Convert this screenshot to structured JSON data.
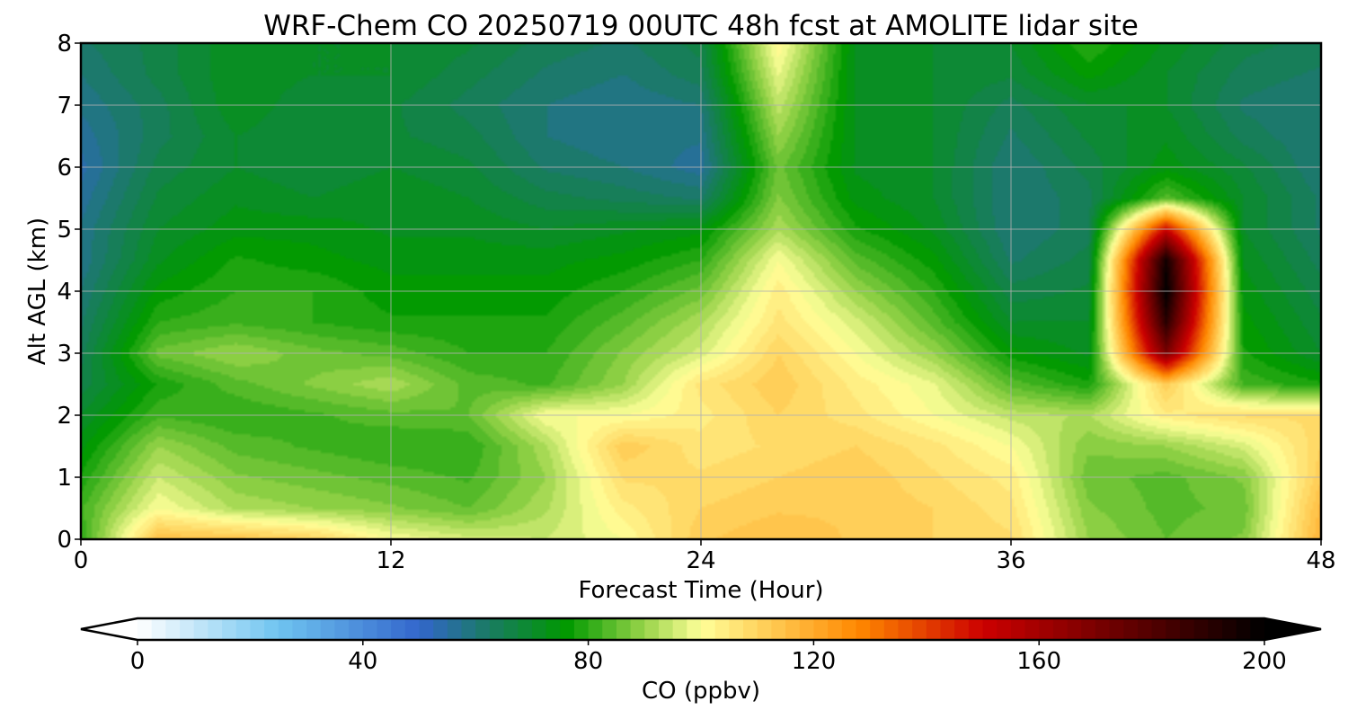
{
  "chart_data": {
    "type": "heatmap",
    "plot_kind": "filled contour (time-height cross section)",
    "title": "WRF-Chem CO  20250719 00UTC 48h fcst at AMOLITE lidar site",
    "xlabel": "Forecast Time (Hour)",
    "ylabel": "Alt AGL (km)",
    "xlim": [
      0,
      48
    ],
    "ylim": [
      0,
      8
    ],
    "x_ticks": [
      0,
      12,
      24,
      36,
      48
    ],
    "y_ticks": [
      0,
      1,
      2,
      3,
      4,
      5,
      6,
      7,
      8
    ],
    "grid": true,
    "x_hours": [
      0,
      3,
      6,
      9,
      12,
      15,
      18,
      21,
      24,
      27,
      30,
      33,
      36,
      39,
      42,
      45,
      48
    ],
    "y_km": [
      0,
      0.5,
      1,
      1.5,
      2,
      2.5,
      3,
      3.5,
      4,
      4.5,
      5,
      5.5,
      6,
      6.5,
      7,
      7.5,
      8
    ],
    "z_ppbv": [
      [
        80,
        115,
        114,
        110,
        100,
        96,
        95,
        100,
        112,
        115,
        112,
        110,
        108,
        90,
        85,
        88,
        118
      ],
      [
        82,
        100,
        92,
        90,
        88,
        85,
        92,
        104,
        110,
        112,
        112,
        110,
        106,
        88,
        84,
        86,
        116
      ],
      [
        78,
        95,
        88,
        86,
        84,
        82,
        90,
        108,
        108,
        110,
        112,
        108,
        104,
        86,
        84,
        88,
        112
      ],
      [
        74,
        90,
        84,
        82,
        80,
        80,
        92,
        112,
        106,
        108,
        110,
        106,
        100,
        88,
        90,
        96,
        110
      ],
      [
        70,
        82,
        80,
        82,
        84,
        85,
        100,
        100,
        104,
        110,
        106,
        100,
        94,
        92,
        104,
        108,
        108
      ],
      [
        66,
        78,
        84,
        88,
        92,
        84,
        82,
        90,
        106,
        112,
        104,
        98,
        84,
        78,
        112,
        82,
        78
      ],
      [
        64,
        86,
        90,
        86,
        84,
        80,
        80,
        88,
        96,
        110,
        100,
        90,
        76,
        72,
        170,
        78,
        70
      ],
      [
        62,
        80,
        82,
        80,
        78,
        78,
        78,
        84,
        92,
        106,
        96,
        84,
        70,
        70,
        190,
        76,
        68
      ],
      [
        60,
        76,
        80,
        80,
        76,
        76,
        76,
        80,
        86,
        104,
        90,
        80,
        66,
        68,
        200,
        74,
        66
      ],
      [
        58,
        72,
        78,
        76,
        74,
        74,
        74,
        76,
        80,
        100,
        84,
        76,
        62,
        66,
        196,
        72,
        64
      ],
      [
        58,
        70,
        74,
        74,
        72,
        72,
        70,
        72,
        74,
        92,
        78,
        72,
        60,
        64,
        150,
        70,
        62
      ],
      [
        56,
        68,
        72,
        70,
        72,
        70,
        66,
        64,
        62,
        88,
        74,
        70,
        60,
        64,
        84,
        70,
        62
      ],
      [
        54,
        66,
        70,
        68,
        70,
        68,
        62,
        60,
        56,
        86,
        72,
        70,
        60,
        66,
        74,
        68,
        60
      ],
      [
        56,
        64,
        70,
        68,
        68,
        66,
        60,
        58,
        58,
        90,
        72,
        70,
        62,
        68,
        72,
        64,
        60
      ],
      [
        58,
        64,
        72,
        68,
        68,
        64,
        60,
        58,
        60,
        94,
        72,
        70,
        64,
        70,
        70,
        62,
        60
      ],
      [
        60,
        66,
        72,
        70,
        70,
        66,
        62,
        60,
        64,
        98,
        72,
        70,
        68,
        76,
        70,
        64,
        62
      ],
      [
        62,
        66,
        72,
        70,
        70,
        68,
        64,
        62,
        66,
        102,
        72,
        70,
        70,
        80,
        72,
        66,
        64
      ]
    ],
    "colorbar": {
      "label": "CO  (ppbv)",
      "min": 0,
      "max": 200,
      "ticks": [
        0,
        40,
        80,
        120,
        160,
        200
      ],
      "extend": "both",
      "levels": 80
    },
    "colormap_stops": [
      {
        "v": 0,
        "color": "#ffffff"
      },
      {
        "v": 25,
        "color": "#6fc4f0"
      },
      {
        "v": 50,
        "color": "#3366cc"
      },
      {
        "v": 62,
        "color": "#1a7a66"
      },
      {
        "v": 76,
        "color": "#009900"
      },
      {
        "v": 90,
        "color": "#99d44a"
      },
      {
        "v": 100,
        "color": "#ffff99"
      },
      {
        "v": 112,
        "color": "#ffcc55"
      },
      {
        "v": 128,
        "color": "#ff8800"
      },
      {
        "v": 150,
        "color": "#cc0000"
      },
      {
        "v": 175,
        "color": "#660000"
      },
      {
        "v": 200,
        "color": "#000000"
      }
    ]
  }
}
